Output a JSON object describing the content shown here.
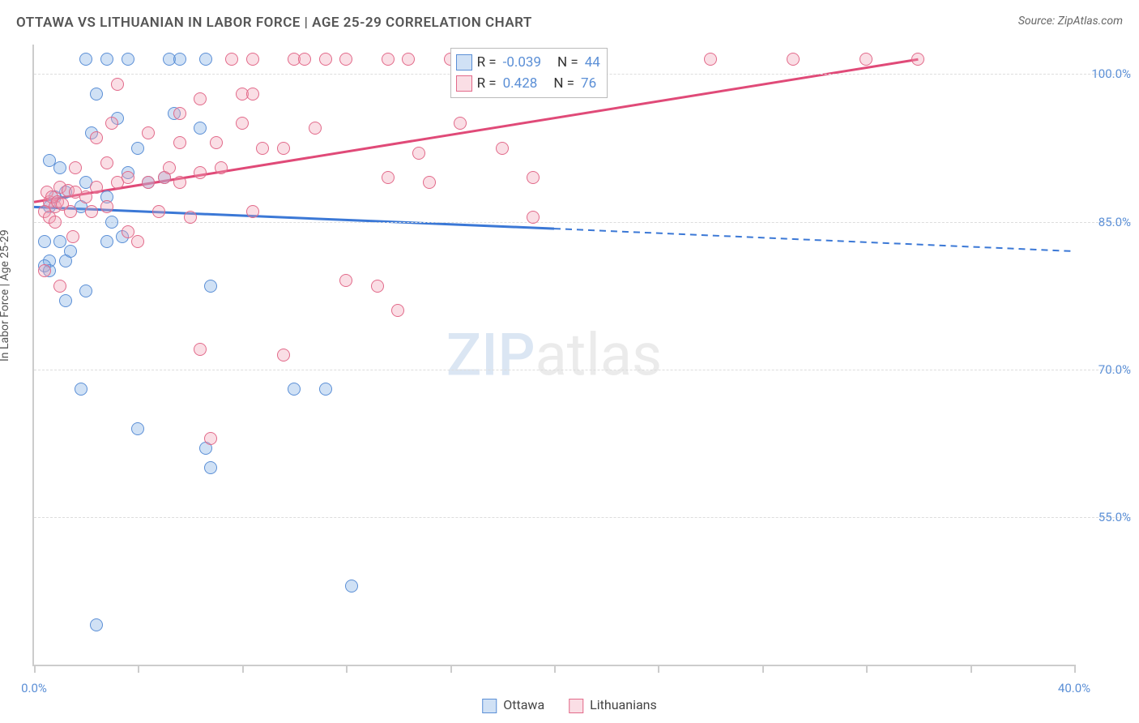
{
  "title": "OTTAWA VS LITHUANIAN IN LABOR FORCE | AGE 25-29 CORRELATION CHART",
  "source": "Source: ZipAtlas.com",
  "ylabel": "In Labor Force | Age 25-29",
  "watermark": {
    "part1": "ZIP",
    "part2": "atlas"
  },
  "xaxis": {
    "min": 0.0,
    "max": 40.0,
    "ticks": [
      0,
      4,
      8,
      12,
      16,
      20,
      24,
      28,
      32,
      36,
      40
    ],
    "tick_labels": {
      "0": "0.0%",
      "40": "40.0%"
    }
  },
  "yaxis": {
    "min": 40.0,
    "max": 103.0,
    "gridlines": [
      55.0,
      70.0,
      85.0,
      100.0
    ],
    "tick_labels": {
      "55": "55.0%",
      "70": "70.0%",
      "85": "85.0%",
      "100": "100.0%"
    }
  },
  "series": [
    {
      "name": "Ottawa",
      "fill": "rgba(120,170,225,0.35)",
      "stroke": "#5b8fd6",
      "points": [
        [
          2.0,
          101.5
        ],
        [
          2.8,
          101.5
        ],
        [
          3.6,
          101.5
        ],
        [
          5.2,
          101.5
        ],
        [
          5.6,
          101.5
        ],
        [
          6.6,
          101.5
        ],
        [
          2.4,
          98.0
        ],
        [
          3.2,
          95.5
        ],
        [
          5.4,
          96.0
        ],
        [
          6.4,
          94.5
        ],
        [
          0.6,
          91.2
        ],
        [
          4.0,
          92.5
        ],
        [
          3.6,
          90.0
        ],
        [
          2.2,
          94.0
        ],
        [
          0.6,
          86.5
        ],
        [
          0.8,
          87.5
        ],
        [
          1.8,
          86.5
        ],
        [
          2.8,
          87.5
        ],
        [
          1.2,
          88.0
        ],
        [
          0.4,
          83.0
        ],
        [
          1.0,
          83.0
        ],
        [
          1.4,
          82.0
        ],
        [
          1.2,
          81.0
        ],
        [
          0.6,
          81.0
        ],
        [
          2.8,
          83.0
        ],
        [
          0.4,
          80.5
        ],
        [
          0.6,
          80.0
        ],
        [
          1.2,
          77.0
        ],
        [
          2.0,
          78.0
        ],
        [
          6.8,
          78.5
        ],
        [
          1.8,
          68.0
        ],
        [
          4.0,
          64.0
        ],
        [
          10.0,
          68.0
        ],
        [
          11.2,
          68.0
        ],
        [
          6.6,
          62.0
        ],
        [
          6.8,
          60.0
        ],
        [
          12.2,
          48.0
        ],
        [
          2.4,
          44.0
        ],
        [
          1.0,
          90.5
        ],
        [
          2.0,
          89.0
        ],
        [
          4.4,
          89.0
        ],
        [
          5.0,
          89.5
        ],
        [
          3.0,
          85.0
        ],
        [
          3.4,
          83.5
        ]
      ],
      "regression": {
        "solid_x": [
          0.0,
          20.0
        ],
        "solid_y": [
          86.5,
          84.3
        ],
        "dashed_x": [
          20.0,
          40.0
        ],
        "dashed_y": [
          84.3,
          82.0
        ],
        "color": "#3b78d6",
        "width": 3
      },
      "stats": {
        "R": "-0.039",
        "N": "44"
      }
    },
    {
      "name": "Lithuanians",
      "fill": "rgba(240,160,180,0.35)",
      "stroke": "#e26a8a",
      "points": [
        [
          7.6,
          101.5
        ],
        [
          8.4,
          101.5
        ],
        [
          10.0,
          101.5
        ],
        [
          10.4,
          101.5
        ],
        [
          11.2,
          101.5
        ],
        [
          12.0,
          101.5
        ],
        [
          13.6,
          101.5
        ],
        [
          14.4,
          101.5
        ],
        [
          16.0,
          101.5
        ],
        [
          20.0,
          101.5
        ],
        [
          26.0,
          101.5
        ],
        [
          29.2,
          101.5
        ],
        [
          32.0,
          101.5
        ],
        [
          34.0,
          101.5
        ],
        [
          3.2,
          99.0
        ],
        [
          8.0,
          98.0
        ],
        [
          8.4,
          98.0
        ],
        [
          6.4,
          97.5
        ],
        [
          5.6,
          96.0
        ],
        [
          2.4,
          93.5
        ],
        [
          5.6,
          93.0
        ],
        [
          7.0,
          93.0
        ],
        [
          8.8,
          92.5
        ],
        [
          9.6,
          92.5
        ],
        [
          18.0,
          92.5
        ],
        [
          14.8,
          92.0
        ],
        [
          1.0,
          88.5
        ],
        [
          1.3,
          88.2
        ],
        [
          1.6,
          88.0
        ],
        [
          2.0,
          87.5
        ],
        [
          2.4,
          88.5
        ],
        [
          3.2,
          89.0
        ],
        [
          3.6,
          89.5
        ],
        [
          4.4,
          89.0
        ],
        [
          5.0,
          89.5
        ],
        [
          5.6,
          89.0
        ],
        [
          6.4,
          90.0
        ],
        [
          7.2,
          90.5
        ],
        [
          8.0,
          95.0
        ],
        [
          0.6,
          87.0
        ],
        [
          0.8,
          86.5
        ],
        [
          1.4,
          86.0
        ],
        [
          2.2,
          86.0
        ],
        [
          2.8,
          86.5
        ],
        [
          4.8,
          86.0
        ],
        [
          6.0,
          85.5
        ],
        [
          8.4,
          86.0
        ],
        [
          13.6,
          89.5
        ],
        [
          15.2,
          89.0
        ],
        [
          19.2,
          89.5
        ],
        [
          19.2,
          85.5
        ],
        [
          3.6,
          84.0
        ],
        [
          4.0,
          83.0
        ],
        [
          1.5,
          83.5
        ],
        [
          0.4,
          80.0
        ],
        [
          1.0,
          78.5
        ],
        [
          6.4,
          72.0
        ],
        [
          9.6,
          71.5
        ],
        [
          12.0,
          79.0
        ],
        [
          13.2,
          78.5
        ],
        [
          14.0,
          76.0
        ],
        [
          6.8,
          63.0
        ],
        [
          1.6,
          90.5
        ],
        [
          2.8,
          91.0
        ],
        [
          5.2,
          90.5
        ],
        [
          3.0,
          95.0
        ],
        [
          0.5,
          88.0
        ],
        [
          0.7,
          87.5
        ],
        [
          0.9,
          87.0
        ],
        [
          1.1,
          86.8
        ],
        [
          0.4,
          86.0
        ],
        [
          0.6,
          85.5
        ],
        [
          0.8,
          85.0
        ],
        [
          16.4,
          95.0
        ],
        [
          10.8,
          94.5
        ],
        [
          4.4,
          94.0
        ]
      ],
      "regression": {
        "solid_x": [
          0.0,
          34.0
        ],
        "solid_y": [
          87.0,
          101.5
        ],
        "dashed_x": null,
        "color": "#e04a78",
        "width": 3
      },
      "stats": {
        "R": "0.428",
        "N": "76"
      }
    }
  ],
  "legend_upper": {
    "R_label": "R =",
    "N_label": "N ="
  },
  "bottom_legend": {
    "items": [
      "Ottawa",
      "Lithuanians"
    ]
  },
  "colors": {
    "background": "#ffffff",
    "grid": "#dddddd",
    "axis": "#cccccc",
    "title": "#555555",
    "tick_text": "#5b8fd6"
  }
}
